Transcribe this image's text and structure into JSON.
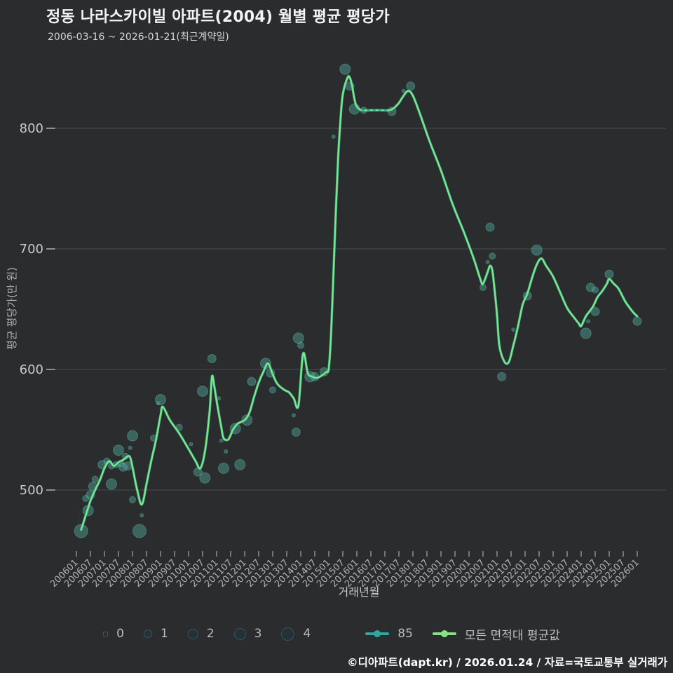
{
  "header": {
    "title": "정동 나라스카이빌 아파트(2004) 월별 평균 평당가",
    "subtitle": "2006-03-16 ~ 2026-01-21(최근계약일)"
  },
  "footer": {
    "credit": "©디아파트(dapt.kr) / 2026.01.24 / 자료=국토교통부 실거래가"
  },
  "legend": {
    "sizes": [
      "0",
      "1",
      "2",
      "3",
      "4"
    ],
    "series_85_label": "85",
    "series_avg_label": "모든 면적대 평균값"
  },
  "colors": {
    "background": "#2b2c2d",
    "grid": "#515151",
    "tick": "#8f8f8f",
    "axis_text": "#c9c9c9",
    "label_text": "#b0b0b0",
    "green_line": "#84e57c",
    "teal_line": "#2fa69e",
    "bubble_fill": "rgba(82,168,158,0.45)",
    "bubble_stroke": "rgba(110,205,195,0.35)"
  },
  "chart_data": {
    "type": "line",
    "title": "정동 나라스카이빌 아파트(2004) 월별 평균 평당가",
    "xlabel": "거래년월",
    "ylabel": "평균 평당가(만 원)",
    "x_range": [
      200601,
      202601
    ],
    "ylim": [
      450,
      860
    ],
    "yticks": [
      500,
      600,
      700,
      800
    ],
    "xticks": [
      "200601",
      "200607",
      "200701",
      "200707",
      "200801",
      "200807",
      "200901",
      "200907",
      "201001",
      "201007",
      "201101",
      "201107",
      "201201",
      "201207",
      "201301",
      "201307",
      "201401",
      "201407",
      "201501",
      "201507",
      "201601",
      "201607",
      "201701",
      "201707",
      "201801",
      "201807",
      "201901",
      "201907",
      "202001",
      "202007",
      "202101",
      "202107",
      "202201",
      "202207",
      "202301",
      "202307",
      "202401",
      "202407",
      "202501",
      "202507",
      "202601"
    ],
    "grid": true,
    "legend_position": "bottom",
    "series": [
      {
        "name": "85",
        "color": "#2fa69e",
        "note": "overlaps the average line almost everywhere; visible as dashes on the 2016 plateau"
      },
      {
        "name": "모든 면적대 평균값",
        "color": "#84e57c"
      }
    ],
    "line_points": [
      [
        200603,
        467
      ],
      [
        200605,
        479
      ],
      [
        200607,
        491
      ],
      [
        200609,
        500
      ],
      [
        200611,
        508
      ],
      [
        200701,
        518
      ],
      [
        200703,
        524
      ],
      [
        200705,
        520
      ],
      [
        200707,
        523
      ],
      [
        200709,
        525
      ],
      [
        200711,
        528
      ],
      [
        200712,
        527
      ],
      [
        200801,
        519
      ],
      [
        200803,
        500
      ],
      [
        200805,
        488
      ],
      [
        200807,
        505
      ],
      [
        200809,
        524
      ],
      [
        200811,
        541
      ],
      [
        200901,
        562
      ],
      [
        200902,
        569
      ],
      [
        200905,
        558
      ],
      [
        200909,
        547
      ],
      [
        201001,
        534
      ],
      [
        201004,
        524
      ],
      [
        201006,
        518
      ],
      [
        201008,
        532
      ],
      [
        201010,
        565
      ],
      [
        201011,
        594
      ],
      [
        201012,
        586
      ],
      [
        201101,
        574
      ],
      [
        201103,
        552
      ],
      [
        201104,
        543
      ],
      [
        201106,
        542
      ],
      [
        201108,
        550
      ],
      [
        201110,
        555
      ],
      [
        201201,
        558
      ],
      [
        201203,
        564
      ],
      [
        201205,
        577
      ],
      [
        201207,
        589
      ],
      [
        201209,
        598
      ],
      [
        201211,
        605
      ],
      [
        201301,
        596
      ],
      [
        201303,
        588
      ],
      [
        201306,
        583
      ],
      [
        201308,
        581
      ],
      [
        201310,
        576
      ],
      [
        201312,
        570
      ],
      [
        201402,
        613
      ],
      [
        201404,
        597
      ],
      [
        201406,
        594
      ],
      [
        201408,
        593
      ],
      [
        201410,
        595
      ],
      [
        201412,
        598
      ],
      [
        201501,
        601
      ],
      [
        201502,
        630
      ],
      [
        201503,
        680
      ],
      [
        201504,
        730
      ],
      [
        201505,
        775
      ],
      [
        201506,
        807
      ],
      [
        201507,
        828
      ],
      [
        201509,
        842
      ],
      [
        201510,
        842
      ],
      [
        201511,
        835
      ],
      [
        201512,
        824
      ],
      [
        201601,
        818
      ],
      [
        201603,
        815
      ],
      [
        201607,
        815
      ],
      [
        201611,
        815
      ],
      [
        201703,
        815
      ],
      [
        201705,
        817
      ],
      [
        201707,
        821
      ],
      [
        201709,
        827
      ],
      [
        201711,
        831
      ],
      [
        201801,
        827
      ],
      [
        201804,
        812
      ],
      [
        201808,
        790
      ],
      [
        201901,
        765
      ],
      [
        201906,
        737
      ],
      [
        201911,
        713
      ],
      [
        202003,
        692
      ],
      [
        202006,
        674
      ],
      [
        202007,
        671
      ],
      [
        202009,
        681
      ],
      [
        202010,
        686
      ],
      [
        202011,
        682
      ],
      [
        202012,
        665
      ],
      [
        202101,
        645
      ],
      [
        202102,
        620
      ],
      [
        202104,
        607
      ],
      [
        202106,
        606
      ],
      [
        202108,
        620
      ],
      [
        202110,
        636
      ],
      [
        202112,
        654
      ],
      [
        202202,
        663
      ],
      [
        202204,
        676
      ],
      [
        202206,
        687
      ],
      [
        202208,
        692
      ],
      [
        202210,
        686
      ],
      [
        202301,
        677
      ],
      [
        202304,
        664
      ],
      [
        202307,
        651
      ],
      [
        202310,
        643
      ],
      [
        202312,
        638
      ],
      [
        202401,
        636
      ],
      [
        202403,
        644
      ],
      [
        202406,
        652
      ],
      [
        202408,
        660
      ],
      [
        202410,
        665
      ],
      [
        202412,
        671
      ],
      [
        202501,
        675
      ],
      [
        202503,
        671
      ],
      [
        202505,
        667
      ],
      [
        202508,
        656
      ],
      [
        202511,
        648
      ],
      [
        202601,
        644
      ]
    ],
    "teal_dash_overlay": {
      "from": 201603,
      "to": 201703,
      "value": 815
    },
    "bubbles_format": [
      "yyyymm",
      "price",
      "count_size_0_to_4"
    ],
    "bubbles": [
      [
        200603,
        466,
        4
      ],
      [
        200605,
        493,
        1
      ],
      [
        200606,
        483,
        3
      ],
      [
        200607,
        496,
        2
      ],
      [
        200608,
        503,
        2
      ],
      [
        200609,
        509,
        1
      ],
      [
        200612,
        521,
        2
      ],
      [
        200702,
        524,
        1
      ],
      [
        200704,
        505,
        3
      ],
      [
        200704,
        520,
        1
      ],
      [
        200706,
        521,
        1
      ],
      [
        200707,
        533,
        3
      ],
      [
        200708,
        522,
        1
      ],
      [
        200709,
        519,
        2
      ],
      [
        200710,
        528,
        1
      ],
      [
        200711,
        520,
        2
      ],
      [
        200712,
        535,
        0
      ],
      [
        200801,
        545,
        3
      ],
      [
        200801,
        492,
        1
      ],
      [
        200804,
        466,
        4
      ],
      [
        200805,
        479,
        0
      ],
      [
        200810,
        543,
        1
      ],
      [
        200812,
        572,
        0
      ],
      [
        200901,
        575,
        3
      ],
      [
        200909,
        552,
        1
      ],
      [
        201002,
        538,
        0
      ],
      [
        201005,
        515,
        2
      ],
      [
        201007,
        582,
        3
      ],
      [
        201008,
        510,
        3
      ],
      [
        201011,
        609,
        2
      ],
      [
        201102,
        576,
        0
      ],
      [
        201103,
        541,
        0
      ],
      [
        201104,
        518,
        3
      ],
      [
        201105,
        532,
        0
      ],
      [
        201109,
        551,
        3
      ],
      [
        201111,
        521,
        3
      ],
      [
        201202,
        558,
        3
      ],
      [
        201204,
        590,
        2
      ],
      [
        201210,
        605,
        3
      ],
      [
        201212,
        597,
        2
      ],
      [
        201301,
        583,
        1
      ],
      [
        201310,
        562,
        0
      ],
      [
        201311,
        548,
        2
      ],
      [
        201312,
        626,
        3
      ],
      [
        201401,
        620,
        1
      ],
      [
        201405,
        594,
        3
      ],
      [
        201407,
        594,
        2
      ],
      [
        201411,
        598,
        2
      ],
      [
        201503,
        793,
        0
      ],
      [
        201508,
        849,
        3
      ],
      [
        201510,
        835,
        2
      ],
      [
        201512,
        816,
        3
      ],
      [
        201604,
        815,
        1
      ],
      [
        201704,
        814,
        2
      ],
      [
        201709,
        831,
        0
      ],
      [
        201712,
        835,
        2
      ],
      [
        202007,
        668,
        1
      ],
      [
        202009,
        689,
        0
      ],
      [
        202010,
        718,
        2
      ],
      [
        202011,
        694,
        1
      ],
      [
        202103,
        594,
        2
      ],
      [
        202108,
        633,
        0
      ],
      [
        202202,
        661,
        2
      ],
      [
        202206,
        699,
        3
      ],
      [
        202403,
        630,
        3
      ],
      [
        202404,
        640,
        0
      ],
      [
        202405,
        668,
        2
      ],
      [
        202407,
        666,
        1
      ],
      [
        202407,
        648,
        2
      ],
      [
        202501,
        679,
        2
      ],
      [
        202601,
        640,
        2
      ]
    ]
  }
}
